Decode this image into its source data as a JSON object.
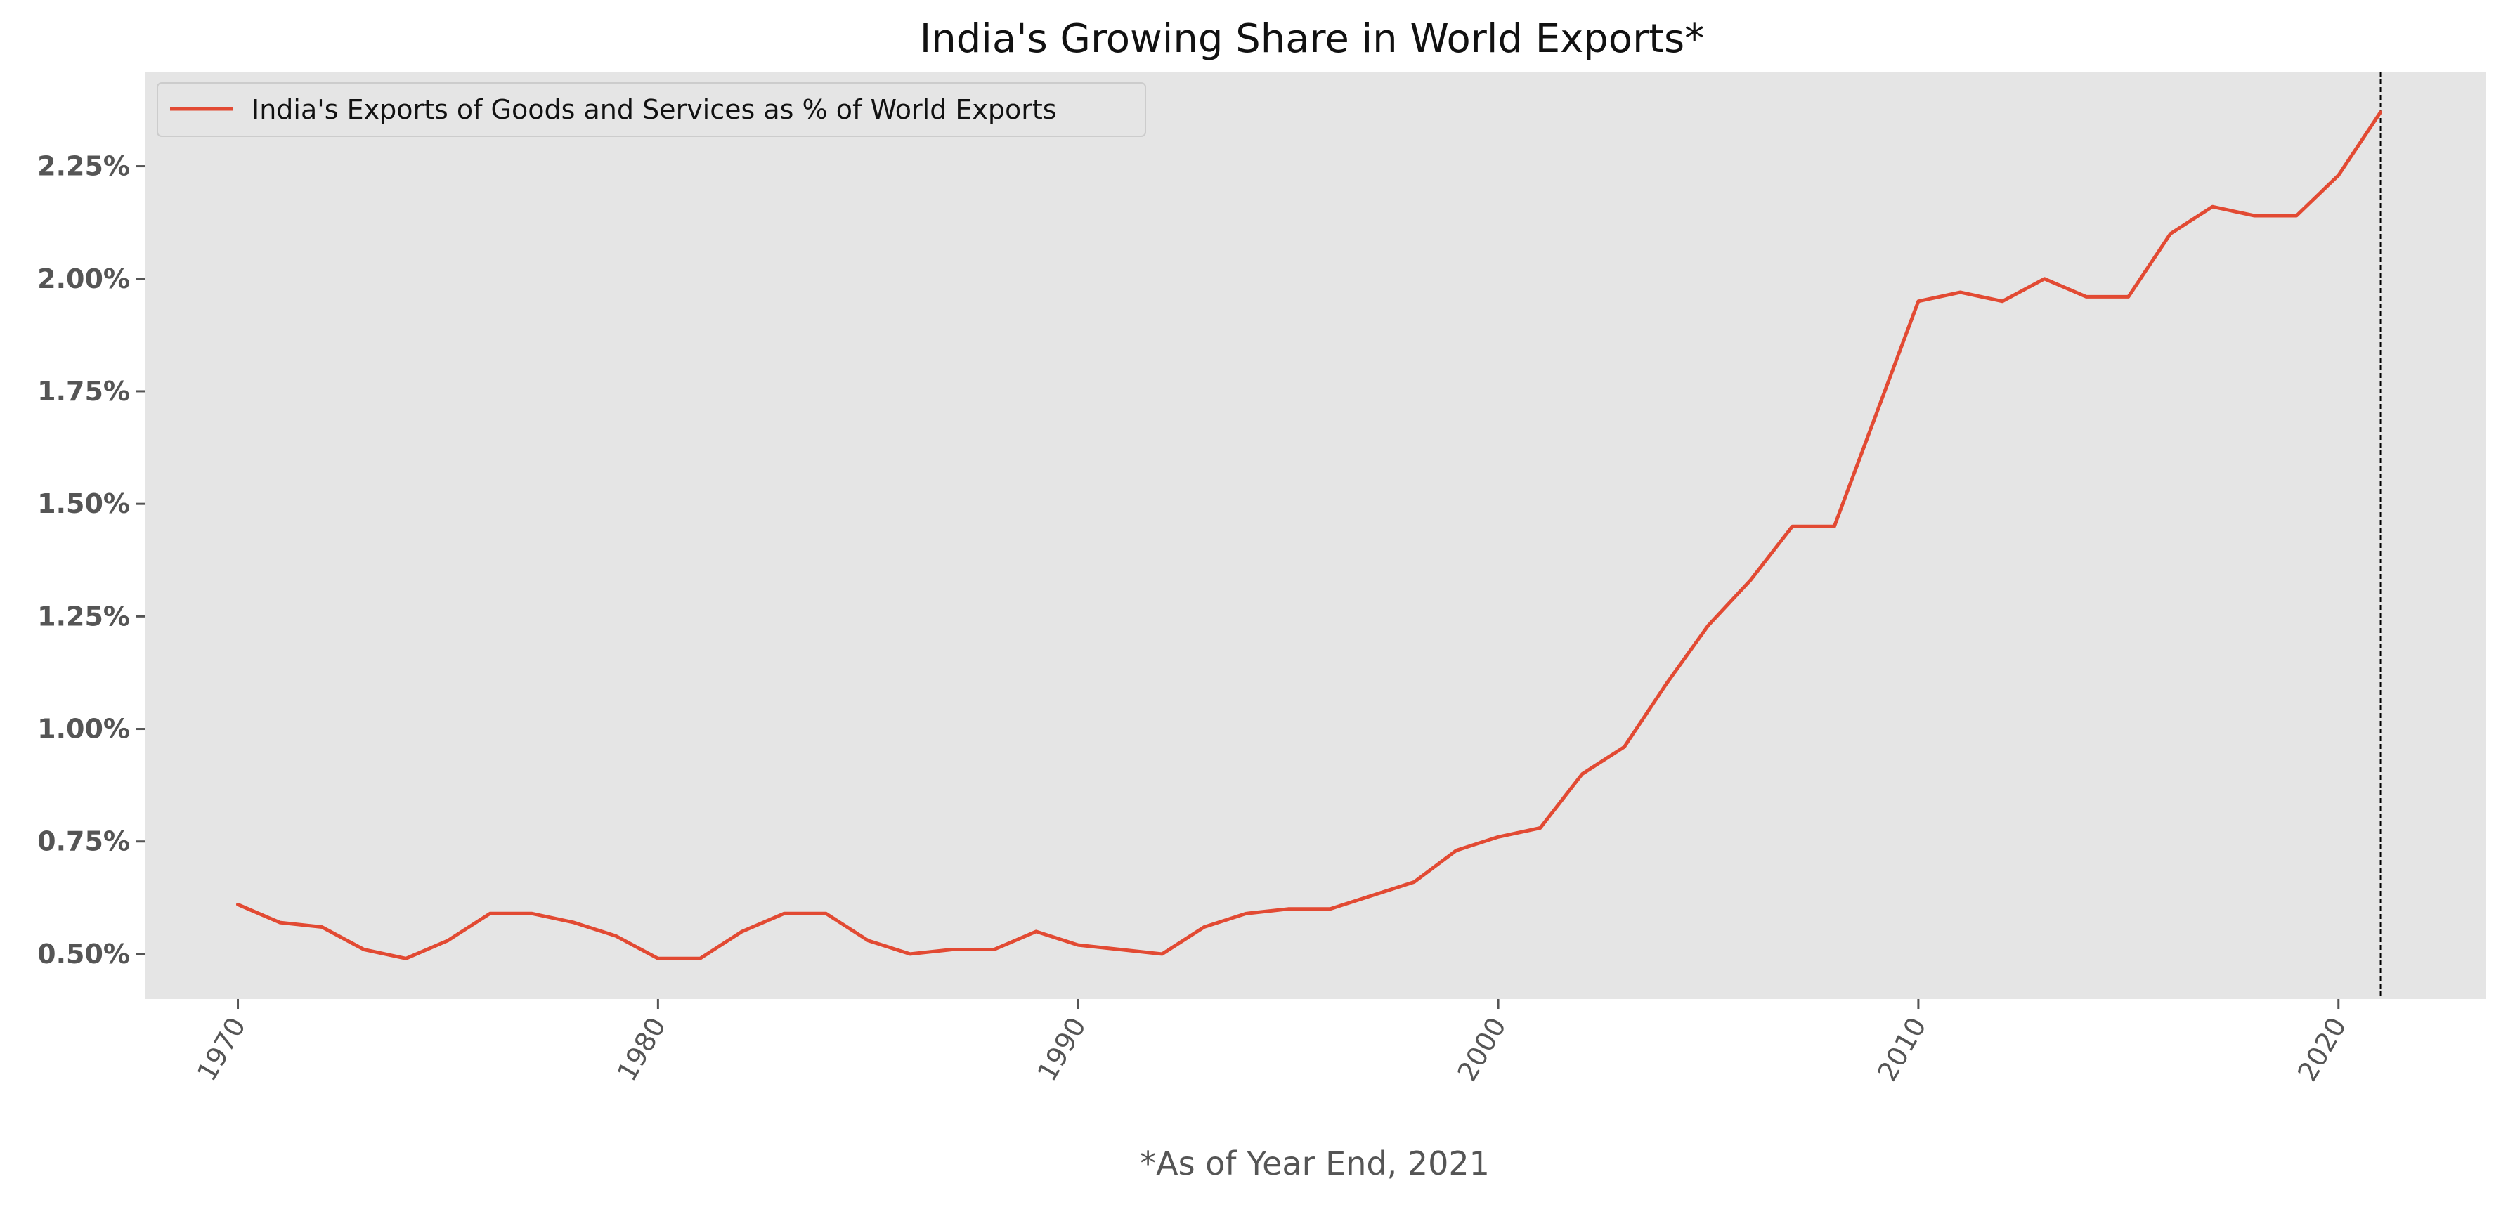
{
  "chart_data": {
    "type": "line",
    "title": "India's Growing Share in World Exports*",
    "xlabel": "*As of Year End, 2021",
    "ylabel": "",
    "xlim": [
      1967.8,
      2023.5
    ],
    "ylim": [
      0.4,
      2.46
    ],
    "x_ticks": [
      1970,
      1980,
      1990,
      2000,
      2010,
      2020
    ],
    "x_tick_labels": [
      "1970",
      "1980",
      "1990",
      "2000",
      "2010",
      "2020"
    ],
    "y_ticks": [
      0.5,
      0.75,
      1.0,
      1.25,
      1.5,
      1.75,
      2.0,
      2.25
    ],
    "y_tick_labels": [
      "0.50%",
      "0.75%",
      "1.00%",
      "1.25%",
      "1.50%",
      "1.75%",
      "2.00%",
      "2.25%"
    ],
    "grid": false,
    "legend": "upper-left",
    "vline_x": 2021,
    "colors": {
      "series": "#E24A33",
      "plot_background": "#E5E5E5",
      "vline": "#000000",
      "tick_text": "#555555"
    },
    "series": [
      {
        "name": "India's Exports of Goods and Services as % of World Exports",
        "x": [
          1970,
          1971,
          1972,
          1973,
          1974,
          1975,
          1976,
          1977,
          1978,
          1979,
          1980,
          1981,
          1982,
          1983,
          1984,
          1985,
          1986,
          1987,
          1988,
          1989,
          1990,
          1991,
          1992,
          1993,
          1994,
          1995,
          1996,
          1997,
          1998,
          1999,
          2000,
          2001,
          2002,
          2003,
          2004,
          2005,
          2006,
          2007,
          2008,
          2009,
          2010,
          2011,
          2012,
          2013,
          2014,
          2015,
          2016,
          2017,
          2018,
          2019,
          2020,
          2021
        ],
        "values": [
          0.61,
          0.57,
          0.56,
          0.51,
          0.49,
          0.53,
          0.59,
          0.59,
          0.57,
          0.54,
          0.49,
          0.49,
          0.55,
          0.59,
          0.59,
          0.53,
          0.5,
          0.51,
          0.51,
          0.55,
          0.52,
          0.51,
          0.5,
          0.56,
          0.59,
          0.6,
          0.6,
          0.63,
          0.66,
          0.73,
          0.76,
          0.78,
          0.9,
          0.96,
          1.1,
          1.23,
          1.33,
          1.45,
          1.45,
          1.7,
          1.95,
          1.97,
          1.95,
          2.0,
          1.96,
          1.96,
          2.1,
          2.16,
          2.14,
          2.14,
          2.23,
          2.37
        ]
      }
    ]
  }
}
